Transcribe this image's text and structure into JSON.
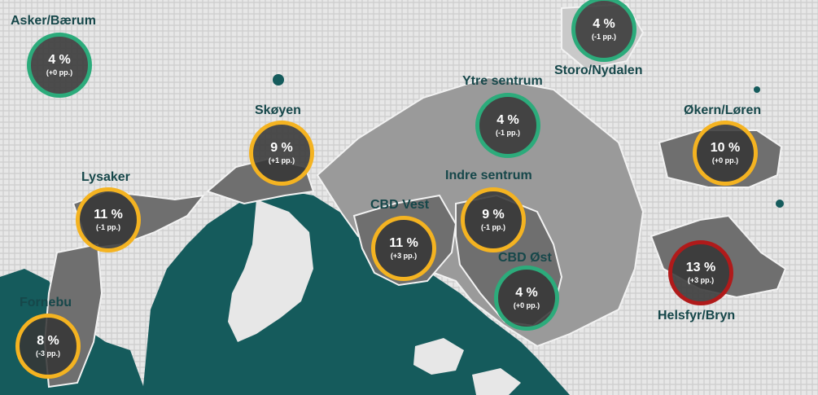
{
  "map": {
    "colors": {
      "water": "#155b5c",
      "land": "#e7e7e7",
      "district": "#7d7d7d",
      "cbd": "#9a9a9a",
      "label": "#16474a",
      "green": "#2cab7b",
      "yellow": "#f4b321",
      "red": "#b01a1a"
    },
    "areas": [
      {
        "name": "Asker/Bærum",
        "value": "4 %",
        "change": "(+0 pp.)",
        "color": "green"
      },
      {
        "name": "Storo/Nydalen",
        "value": "4 %",
        "change": "(-1 pp.)",
        "color": "green"
      },
      {
        "name": "Ytre sentrum",
        "value": "4 %",
        "change": "(-1 pp.)",
        "color": "green"
      },
      {
        "name": "Skøyen",
        "value": "9 %",
        "change": "(+1 pp.)",
        "color": "yellow"
      },
      {
        "name": "Økern/Løren",
        "value": "10 %",
        "change": "(+0 pp.)",
        "color": "yellow"
      },
      {
        "name": "Lysaker",
        "value": "11 %",
        "change": "(-1 pp.)",
        "color": "yellow"
      },
      {
        "name": "Indre sentrum",
        "value": "9 %",
        "change": "(-1 pp.)",
        "color": "yellow"
      },
      {
        "name": "CBD Vest",
        "value": "11 %",
        "change": "(+3 pp.)",
        "color": "yellow"
      },
      {
        "name": "CBD Øst",
        "value": "4 %",
        "change": "(+0 pp.)",
        "color": "green"
      },
      {
        "name": "Helsfyr/Bryn",
        "value": "13 %",
        "change": "(+3 pp.)",
        "color": "red"
      },
      {
        "name": "Fornebu",
        "value": "8 %",
        "change": "(-3 pp.)",
        "color": "yellow"
      }
    ]
  }
}
